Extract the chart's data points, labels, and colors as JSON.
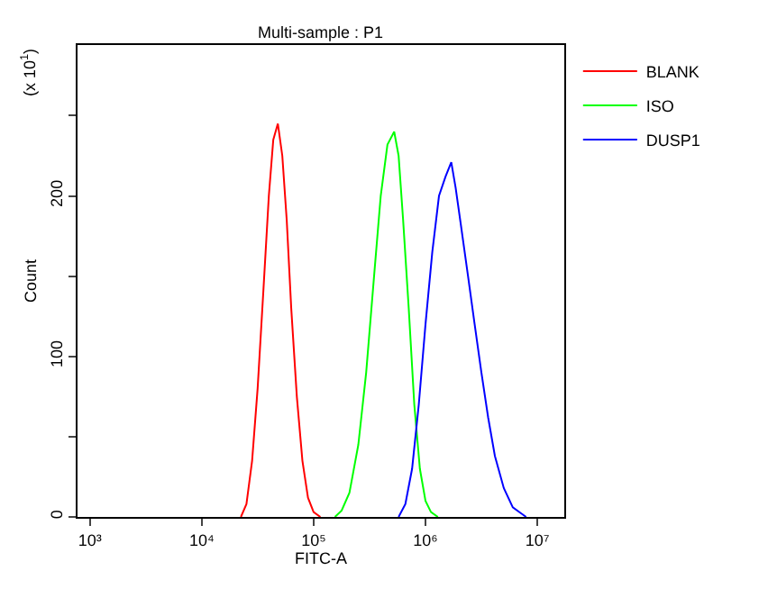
{
  "chart_data": {
    "type": "line",
    "title": "Multi-sample : P1",
    "xlabel": "FITC-A",
    "ylabel": "Count",
    "annotations": [
      "(x 10$^{1}$)"
    ],
    "log": "x",
    "grid": false,
    "legend": "top right",
    "marker": "none",
    "xlim": [
      776,
      17400000
    ],
    "xticks": [
      {
        "value": 1000,
        "label": "10³"
      },
      {
        "value": 10000,
        "label": "10⁴"
      },
      {
        "value": 100000,
        "label": "10⁵"
      },
      {
        "value": 1000000,
        "label": "10⁶"
      },
      {
        "value": 10000000,
        "label": "10⁷"
      }
    ],
    "ylim": [
      0,
      294
    ],
    "yticks": [
      0,
      {
        "value": 50,
        "label": null
      },
      100,
      {
        "value": 150,
        "label": null
      },
      200,
      {
        "value": 250,
        "label": null
      }
    ],
    "series": [
      {
        "name": "BLANK",
        "color": "#ff0000",
        "x": [
          22400,
          25100,
          28200,
          31600,
          35500,
          39800,
          43600,
          47900,
          52500,
          57500,
          63100,
          70800,
          79400,
          89100,
          100000,
          115000
        ],
        "values": [
          0,
          8,
          35,
          80,
          140,
          200,
          235,
          245,
          225,
          185,
          130,
          75,
          35,
          12,
          3,
          0
        ]
      },
      {
        "name": "ISO",
        "color": "#00ff00",
        "x": [
          155000,
          178000,
          209000,
          251000,
          295000,
          347000,
          398000,
          457000,
          525000,
          575000,
          631000,
          708000,
          794000,
          891000,
          1000000,
          1120000,
          1290000
        ],
        "values": [
          0,
          4,
          15,
          45,
          90,
          150,
          200,
          232,
          240,
          225,
          185,
          130,
          70,
          30,
          10,
          3,
          0
        ]
      },
      {
        "name": "DUSP1",
        "color": "#0000ff",
        "x": [
          575000,
          661000,
          759000,
          871000,
          1000000,
          1150000,
          1320000,
          1510000,
          1700000,
          1860000,
          2090000,
          2400000,
          2750000,
          3160000,
          3630000,
          4170000,
          5010000,
          6030000,
          7240000,
          7940000
        ],
        "values": [
          0,
          8,
          30,
          70,
          120,
          165,
          200,
          212,
          221,
          205,
          180,
          150,
          120,
          90,
          62,
          38,
          18,
          6,
          2,
          0
        ]
      }
    ]
  }
}
